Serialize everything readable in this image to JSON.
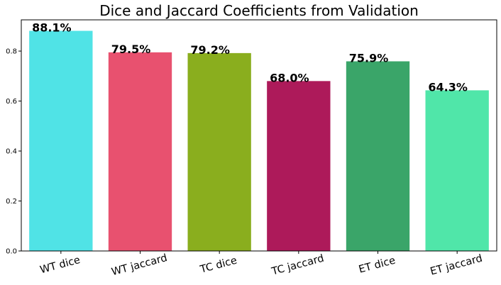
{
  "chart_data": {
    "type": "bar",
    "title": "Dice and Jaccard Coefficients from Validation",
    "xlabel": "",
    "ylabel": "",
    "categories": [
      "WT dice",
      "WT jaccard",
      "TC dice",
      "TC jaccard",
      "ET dice",
      "ET jaccard"
    ],
    "values": [
      0.881,
      0.795,
      0.792,
      0.68,
      0.759,
      0.643
    ],
    "data_labels": [
      "88.1%",
      "79.5%",
      "79.2%",
      "68.0%",
      "75.9%",
      "64.3%"
    ],
    "colors": [
      "#50e3e6",
      "#e8516f",
      "#8aae1e",
      "#ad1a5a",
      "#3aa569",
      "#50e6a9"
    ],
    "yticks": [
      0.0,
      0.2,
      0.4,
      0.6,
      0.8
    ],
    "ytick_labels": [
      "0.0",
      "0.2",
      "0.4",
      "0.6",
      "0.8"
    ],
    "ylim": [
      0,
      0.925
    ],
    "grid": false,
    "legend": "none",
    "xtick_rotation_deg": -15
  }
}
